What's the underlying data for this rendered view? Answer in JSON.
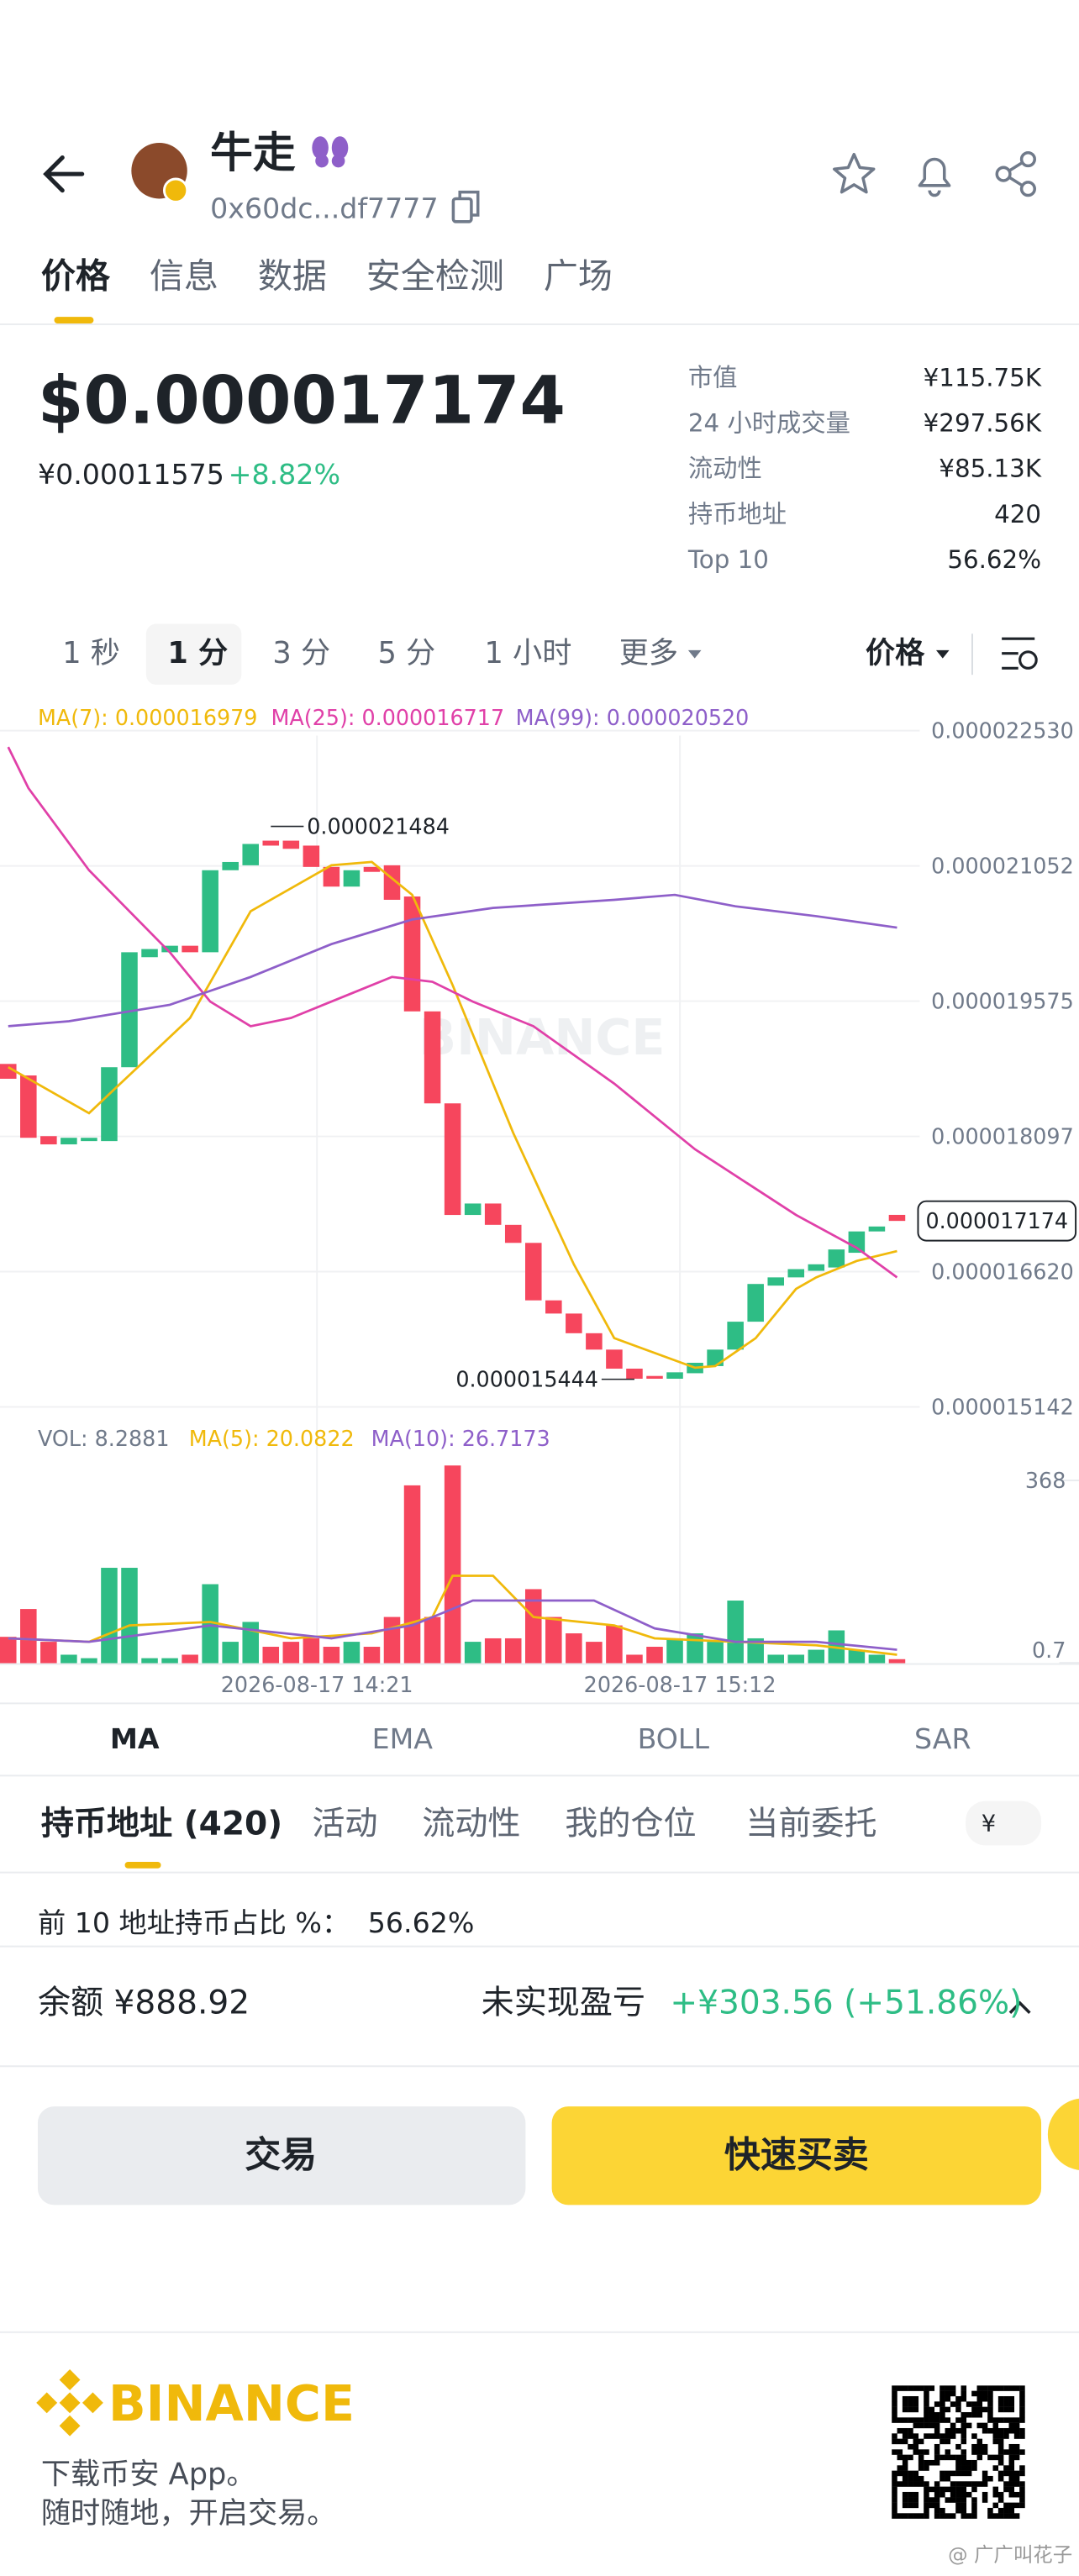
{
  "header": {
    "name": "牛走",
    "address": "0x60dc...df7777"
  },
  "tabs": [
    "价格",
    "信息",
    "数据",
    "安全检测",
    "广场"
  ],
  "price": {
    "main": "$0.000017174",
    "fiat": "¥0.00011575",
    "change": "+8.82%"
  },
  "stats": [
    {
      "label": "市值",
      "value": "¥115.75K"
    },
    {
      "label": "24 小时成交量",
      "value": "¥297.56K"
    },
    {
      "label": "流动性",
      "value": "¥85.13K"
    },
    {
      "label": "持币地址",
      "value": "420"
    },
    {
      "label": "Top 10",
      "value": "56.62%"
    }
  ],
  "intervals": [
    "1 秒",
    "1 分",
    "3 分",
    "5 分",
    "1 小时",
    "更多"
  ],
  "price_menu": "价格",
  "chart": {
    "type": "candlestick",
    "legend": [
      "MA(7): 0.000016979",
      "MA(25): 0.000016717",
      "MA(99): 0.000020520"
    ],
    "watermark": "BINANCE",
    "ylim": [
      1.499e-05,
      2.262e-05
    ],
    "yticks": [
      {
        "value": 2.253e-05,
        "label": "0.000022530"
      },
      2.1052e-05,
      1.9575e-05,
      1.8097e-05,
      {
        "value": 1.662e-05,
        "label": "0.000016620"
      },
      1.5142e-05
    ],
    "up_color": "#2ebd85",
    "down_color": "#f6465d",
    "open": [
      1.8889e-05,
      1.8763e-05,
      1.81e-05,
      1.801e-05,
      1.8046e-05,
      1.8046e-05,
      1.8853e-05,
      2.0055e-05,
      2.0109e-05,
      2.018e-05,
      2.0109e-05,
      2.1005e-05,
      2.1059e-05,
      2.1328e-05,
      2.1328e-05,
      2.1274e-05,
      2.1041e-05,
      2.0826e-05,
      2.1041e-05,
      2.1059e-05,
      2.0718e-05,
      1.9463e-05,
      1.8458e-05,
      1.7239e-05,
      1.7364e-05,
      1.7131e-05,
      1.6934e-05,
      1.6306e-05,
      1.6162e-05,
      1.5947e-05,
      1.5768e-05,
      1.556e-05,
      1.548e-05,
      1.545e-05,
      1.551e-05,
      1.5588e-05,
      1.5768e-05,
      1.6073e-05,
      1.6467e-05,
      1.6557e-05,
      1.6629e-05,
      1.6665e-05,
      1.6826e-05,
      1.7059e-05,
      1.724e-05
    ],
    "close": [
      1.8727e-05,
      1.8082e-05,
      1.801e-05,
      1.8082e-05,
      1.8082e-05,
      1.8853e-05,
      2.0109e-05,
      2.0144e-05,
      2.018e-05,
      2.0109e-05,
      2.1005e-05,
      2.1095e-05,
      2.1292e-05,
      2.1274e-05,
      2.1239e-05,
      2.1041e-05,
      2.0826e-05,
      2.1005e-05,
      2.0987e-05,
      2.0682e-05,
      1.9463e-05,
      1.8458e-05,
      1.7239e-05,
      1.7364e-05,
      1.7131e-05,
      1.6934e-05,
      1.6306e-05,
      1.6162e-05,
      1.5947e-05,
      1.5768e-05,
      1.556e-05,
      1.545e-05,
      1.545e-05,
      1.552e-05,
      1.5624e-05,
      1.5768e-05,
      1.6073e-05,
      1.6485e-05,
      1.6557e-05,
      1.6647e-05,
      1.67e-05,
      1.6862e-05,
      1.7059e-05,
      1.7113e-05,
      1.7174e-05
    ],
    "high": 2.1484e-05,
    "low": 1.5444e-05,
    "current": 1.7174e-05,
    "ma": [
      {
        "color": "#f0b90b",
        "x": [
          0,
          4,
          9,
          12,
          16,
          18,
          20,
          22,
          25,
          28,
          30,
          34,
          35,
          37,
          39,
          40,
          42,
          44
        ],
        "values": [
          1.8853e-05,
          1.8351e-05,
          1.9391e-05,
          2.0557e-05,
          2.1059e-05,
          2.1095e-05,
          2.0736e-05,
          1.975e-05,
          1.8135e-05,
          1.67e-05,
          1.5893e-05,
          1.557e-05,
          1.5588e-05,
          1.5893e-05,
          1.6431e-05,
          1.6557e-05,
          1.6736e-05,
          1.6844e-05
        ]
      },
      {
        "color": "#e040a8",
        "x": [
          0,
          1,
          4,
          8,
          10,
          12,
          14,
          17,
          19,
          21,
          23,
          26,
          30,
          34,
          39,
          42,
          44
        ],
        "values": [
          2.2351e-05,
          2.1902e-05,
          2.1005e-05,
          2.0109e-05,
          1.957e-05,
          1.9301e-05,
          1.9391e-05,
          1.966e-05,
          1.9839e-05,
          1.9786e-05,
          1.957e-05,
          1.9301e-05,
          1.8674e-05,
          1.7956e-05,
          1.7239e-05,
          1.688e-05,
          1.6557e-05
        ]
      },
      {
        "color": "#8e5fc9",
        "x": [
          0,
          3,
          8,
          12,
          16,
          20,
          24,
          30,
          33,
          36,
          40,
          44
        ],
        "values": [
          1.9301e-05,
          1.9355e-05,
          1.9535e-05,
          1.9839e-05,
          2.0198e-05,
          2.0467e-05,
          2.0593e-05,
          2.0682e-05,
          2.0736e-05,
          2.0611e-05,
          2.0503e-05,
          2.0378e-05
        ]
      }
    ],
    "volume": {
      "legend": [
        "VOL: 8.2881",
        "MA(5): 20.0822",
        "MA(10): 26.7173"
      ],
      "ylim": [
        0,
        400
      ],
      "yticks": [
        368,
        0.7
      ],
      "values": [
        53,
        109,
        43,
        17,
        10,
        192,
        192,
        10,
        10,
        17,
        159,
        43,
        83,
        33,
        43,
        50,
        33,
        43,
        33,
        93,
        358,
        93,
        398,
        43,
        50,
        50,
        149,
        93,
        60,
        43,
        76,
        17,
        33,
        50,
        60,
        43,
        126,
        50,
        17,
        17,
        27,
        66,
        27,
        17,
        8
      ],
      "ma": [
        {
          "color": "#f0b90b",
          "x": [
            0,
            4,
            6,
            10,
            14,
            18,
            21,
            22,
            24,
            26,
            30,
            32,
            36,
            40,
            44
          ],
          "values": [
            50,
            43,
            76,
            83,
            50,
            60,
            93,
            176,
            176,
            93,
            76,
            50,
            43,
            36,
            17
          ]
        },
        {
          "color": "#8e5fc9",
          "x": [
            0,
            4,
            10,
            16,
            20,
            23,
            26,
            29,
            32,
            36,
            40,
            44
          ],
          "values": [
            50,
            43,
            76,
            50,
            76,
            126,
            126,
            126,
            70,
            43,
            43,
            27
          ]
        }
      ]
    },
    "time_labels": [
      "2026-08-17 14:21",
      "2026-08-17 15:12"
    ]
  },
  "indicators": [
    "MA",
    "EMA",
    "BOLL",
    "SAR"
  ],
  "holder_tabs": [
    "持币地址 (420)",
    "活动",
    "流动性",
    "我的仓位",
    "当前委托"
  ],
  "currency": "¥",
  "top10": {
    "label": "前 10 地址持币占比 %：",
    "value": "56.62%"
  },
  "balance": {
    "label": "余额 ¥888.92",
    "pnl_label": "未实现盈亏",
    "pnl_value": "+¥303.56 (+51.86%)"
  },
  "buttons": [
    "交易",
    "快速买卖"
  ],
  "footer": {
    "brand": "BINANCE",
    "line1": "下载币安 App。",
    "line2": "随时随地，开启交易。",
    "watermark": "@ 广广叫花子"
  }
}
